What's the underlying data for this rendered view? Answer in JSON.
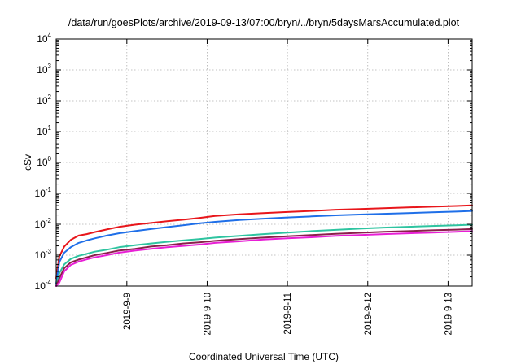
{
  "chart_data": {
    "type": "line",
    "title": "/data/run/goesPlots/archive/2019-09-13/07:00/bryn/../bryn/5daysMarsAccumulated.plot",
    "xlabel": "Coordinated Universal Time (UTC)",
    "ylabel": "cSv",
    "yscale": "log",
    "ylim": [
      0.0001,
      10000
    ],
    "xlim": [
      8.12,
      13.3
    ],
    "grid": true,
    "x_ticks": [
      {
        "value": 9,
        "label": "2019-9-9"
      },
      {
        "value": 10,
        "label": "2019-9-10"
      },
      {
        "value": 11,
        "label": "2019-9-11"
      },
      {
        "value": 12,
        "label": "2019-9-12"
      },
      {
        "value": 13,
        "label": "2019-9-13"
      }
    ],
    "y_ticks": [
      {
        "value": 0.0001,
        "base": "10",
        "exp": "-4"
      },
      {
        "value": 0.001,
        "base": "10",
        "exp": "-3"
      },
      {
        "value": 0.01,
        "base": "10",
        "exp": "-2"
      },
      {
        "value": 0.1,
        "base": "10",
        "exp": "-1"
      },
      {
        "value": 1,
        "base": "10",
        "exp": "0"
      },
      {
        "value": 10,
        "base": "10",
        "exp": "1"
      },
      {
        "value": 100,
        "base": "10",
        "exp": "2"
      },
      {
        "value": 1000,
        "base": "10",
        "exp": "3"
      },
      {
        "value": 10000,
        "base": "10",
        "exp": "4"
      }
    ],
    "series": [
      {
        "color": "#e8161b",
        "x": [
          8.12,
          8.16,
          8.22,
          8.3,
          8.4,
          8.5,
          8.6,
          8.75,
          8.9,
          9.1,
          9.3,
          9.5,
          9.7,
          9.9,
          10.1,
          10.4,
          10.7,
          11.0,
          11.3,
          11.6,
          11.9,
          12.2,
          12.5,
          12.8,
          13.1,
          13.3
        ],
        "y": [
          0.00018,
          0.0009,
          0.0019,
          0.0031,
          0.0043,
          0.0048,
          0.0056,
          0.0068,
          0.0082,
          0.0097,
          0.011,
          0.0125,
          0.014,
          0.016,
          0.0185,
          0.021,
          0.023,
          0.025,
          0.027,
          0.0295,
          0.031,
          0.033,
          0.035,
          0.037,
          0.039,
          0.041
        ]
      },
      {
        "color": "#1f6fe8",
        "x": [
          8.12,
          8.16,
          8.22,
          8.3,
          8.4,
          8.5,
          8.6,
          8.75,
          8.9,
          9.1,
          9.3,
          9.5,
          9.7,
          9.9,
          10.1,
          10.4,
          10.7,
          11.0,
          11.3,
          11.6,
          11.9,
          12.2,
          12.5,
          12.8,
          13.1,
          13.3
        ],
        "y": [
          0.00012,
          0.0006,
          0.0012,
          0.0018,
          0.0025,
          0.003,
          0.0035,
          0.0043,
          0.0051,
          0.006,
          0.007,
          0.0081,
          0.0093,
          0.0107,
          0.012,
          0.0138,
          0.0152,
          0.0166,
          0.018,
          0.0195,
          0.0207,
          0.0219,
          0.0231,
          0.0244,
          0.0257,
          0.027
        ]
      },
      {
        "color": "#2ec4a0",
        "x": [
          8.12,
          8.16,
          8.22,
          8.3,
          8.4,
          8.5,
          8.6,
          8.75,
          8.9,
          9.1,
          9.3,
          9.5,
          9.7,
          9.9,
          10.1,
          10.4,
          10.7,
          11.0,
          11.3,
          11.6,
          11.9,
          12.2,
          12.5,
          12.8,
          13.1,
          13.3
        ],
        "y": [
          0.0001,
          0.00026,
          0.0005,
          0.00075,
          0.00095,
          0.0011,
          0.0013,
          0.0015,
          0.0018,
          0.0021,
          0.0024,
          0.0027,
          0.003,
          0.0033,
          0.0037,
          0.0042,
          0.0048,
          0.0054,
          0.006,
          0.0066,
          0.0072,
          0.0078,
          0.0083,
          0.0088,
          0.0093,
          0.0097
        ]
      },
      {
        "color": "#8a1f4a",
        "x": [
          8.12,
          8.16,
          8.22,
          8.3,
          8.4,
          8.5,
          8.6,
          8.75,
          8.9,
          9.1,
          9.3,
          9.5,
          9.7,
          9.9,
          10.1,
          10.4,
          10.7,
          11.0,
          11.3,
          11.6,
          11.9,
          12.2,
          12.5,
          12.8,
          13.1,
          13.3
        ],
        "y": [
          0.0001,
          0.00018,
          0.00038,
          0.00058,
          0.00072,
          0.00085,
          0.001,
          0.00118,
          0.0014,
          0.0016,
          0.0019,
          0.0021,
          0.0024,
          0.0026,
          0.0029,
          0.0033,
          0.0037,
          0.0041,
          0.0045,
          0.0049,
          0.0053,
          0.0057,
          0.006,
          0.0064,
          0.0067,
          0.007
        ]
      },
      {
        "color": "#e81fd6",
        "x": [
          8.12,
          8.16,
          8.22,
          8.3,
          8.4,
          8.5,
          8.6,
          8.75,
          8.9,
          9.1,
          9.3,
          9.5,
          9.7,
          9.9,
          10.1,
          10.4,
          10.7,
          11.0,
          11.3,
          11.6,
          11.9,
          12.2,
          12.5,
          12.8,
          13.1,
          13.3
        ],
        "y": [
          0.0001,
          0.00013,
          0.0003,
          0.00048,
          0.00062,
          0.00073,
          0.00085,
          0.001,
          0.0012,
          0.0014,
          0.0016,
          0.0018,
          0.002,
          0.0022,
          0.0025,
          0.0028,
          0.0032,
          0.0035,
          0.0038,
          0.0042,
          0.0045,
          0.0048,
          0.0051,
          0.0054,
          0.0057,
          0.006
        ]
      }
    ]
  }
}
